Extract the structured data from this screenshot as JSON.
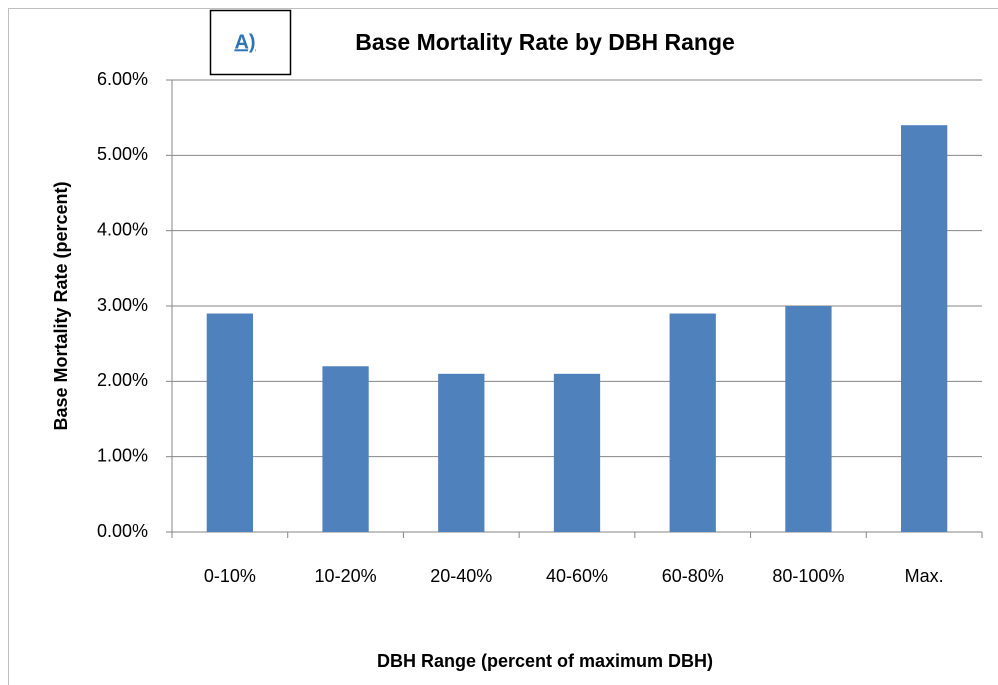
{
  "chart_data": {
    "type": "bar",
    "title": "Base Mortality Rate by DBH Range",
    "panel_label": "A)",
    "x_label": "DBH Range (percent of maximum DBH)",
    "y_label": "Base Mortality Rate (percent)",
    "categories": [
      "0-10%",
      "10-20%",
      "20-40%",
      "40-60%",
      "60-80%",
      "80-100%",
      "Max."
    ],
    "values": [
      2.9,
      2.2,
      2.1,
      2.1,
      2.9,
      3.0,
      5.4
    ],
    "color": "#4f81bd",
    "ylim": [
      0,
      6
    ],
    "yticks": [
      {
        "value": 0,
        "label": "0.00%"
      },
      {
        "value": 1,
        "label": "1.00%"
      },
      {
        "value": 2,
        "label": "2.00%"
      },
      {
        "value": 3,
        "label": "3.00%"
      },
      {
        "value": 4,
        "label": "4.00%"
      },
      {
        "value": 5,
        "label": "5.00%"
      },
      {
        "value": 6,
        "label": "6.00%"
      }
    ],
    "grid": true
  }
}
